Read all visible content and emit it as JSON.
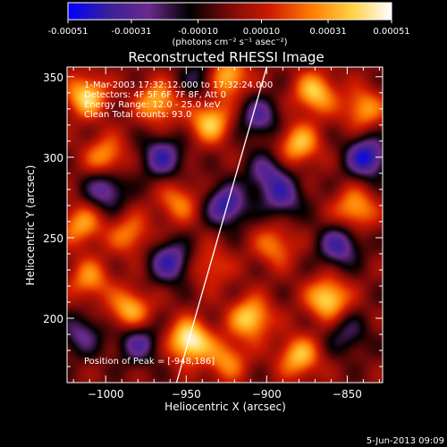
{
  "chart_data": {
    "type": "heatmap",
    "title": "Reconstructed RHESSI Image",
    "xlabel": "Heliocentric X (arcsec)",
    "ylabel": "Heliocentric Y (arcsec)",
    "xlim": [
      -1024,
      -828
    ],
    "ylim": [
      160,
      356
    ],
    "x_ticks": [
      -1000,
      -950,
      -900,
      -850
    ],
    "x_tick_labels": [
      "−1000",
      "−950",
      "−900",
      "−850"
    ],
    "y_ticks": [
      200,
      250,
      300,
      350
    ],
    "y_tick_labels": [
      "200",
      "250",
      "300",
      "350"
    ],
    "colorbar": {
      "range": [
        -0.00051,
        0.00051
      ],
      "ticks": [
        -0.00051,
        -0.00031,
        -0.0001,
        0.0001,
        0.00031,
        0.00051
      ],
      "tick_labels": [
        "-0.00051",
        "-0.00031",
        "-0.00010",
        "0.00010",
        "0.00031",
        "0.00051"
      ],
      "units_label": "(photons cm⁻² s⁻¹ asec⁻²)",
      "stops": [
        "#0000ff",
        "#3a1f9a",
        "#6a2a8a",
        "#000000",
        "#7a0a0a",
        "#d01a00",
        "#ff7a00",
        "#ffd040",
        "#ffffff"
      ]
    },
    "annotations": [
      "1-Mar-2003 17:32:12.000 to 17:32:24.000",
      "Detectors: 4F 5F 6F 7F 8F, Att 0",
      "Energy Range: 12.0 - 25.0 keV",
      "Clean     Total counts: 93.0"
    ],
    "peak_label": "Position of Peak = [-948,186]",
    "peak": {
      "x": -948,
      "y": 186
    },
    "limb_line": [
      {
        "x": -956,
        "y": 160
      },
      {
        "x": -900,
        "y": 356
      }
    ],
    "blobs": [
      {
        "x": -948,
        "y": 186,
        "v": 1.0
      },
      {
        "x": -910,
        "y": 200,
        "v": 0.8
      },
      {
        "x": -862,
        "y": 212,
        "v": 0.85
      },
      {
        "x": -880,
        "y": 176,
        "v": 0.7
      },
      {
        "x": -925,
        "y": 174,
        "v": 0.55
      },
      {
        "x": -985,
        "y": 205,
        "v": 0.7
      },
      {
        "x": -1010,
        "y": 224,
        "v": 0.55
      },
      {
        "x": -1015,
        "y": 258,
        "v": 0.6
      },
      {
        "x": -985,
        "y": 252,
        "v": 0.5
      },
      {
        "x": -955,
        "y": 272,
        "v": 0.5
      },
      {
        "x": -1012,
        "y": 338,
        "v": 0.8
      },
      {
        "x": -968,
        "y": 334,
        "v": 0.7
      },
      {
        "x": -935,
        "y": 322,
        "v": 0.75
      },
      {
        "x": -925,
        "y": 350,
        "v": 0.8
      },
      {
        "x": -880,
        "y": 308,
        "v": 0.7
      },
      {
        "x": -870,
        "y": 340,
        "v": 0.75
      },
      {
        "x": -845,
        "y": 268,
        "v": 0.65
      },
      {
        "x": -895,
        "y": 245,
        "v": 0.5
      },
      {
        "x": -935,
        "y": 232,
        "v": 0.4
      },
      {
        "x": -840,
        "y": 330,
        "v": 0.6
      },
      {
        "x": -1000,
        "y": 300,
        "v": 0.6
      },
      {
        "x": -965,
        "y": 300,
        "v": -0.7
      },
      {
        "x": -1000,
        "y": 280,
        "v": -0.65
      },
      {
        "x": -960,
        "y": 235,
        "v": -0.75
      },
      {
        "x": -925,
        "y": 270,
        "v": -0.8
      },
      {
        "x": -980,
        "y": 185,
        "v": -0.6
      },
      {
        "x": -890,
        "y": 275,
        "v": -0.6
      },
      {
        "x": -855,
        "y": 245,
        "v": -0.7
      },
      {
        "x": -838,
        "y": 300,
        "v": -0.9
      },
      {
        "x": -905,
        "y": 325,
        "v": -0.6
      },
      {
        "x": -1015,
        "y": 190,
        "v": -0.5
      },
      {
        "x": -900,
        "y": 290,
        "v": -0.55
      },
      {
        "x": -940,
        "y": 350,
        "v": -0.45
      },
      {
        "x": -850,
        "y": 190,
        "v": -0.4
      }
    ]
  },
  "footer": {
    "date": "5-Jun-2013 09:09"
  }
}
